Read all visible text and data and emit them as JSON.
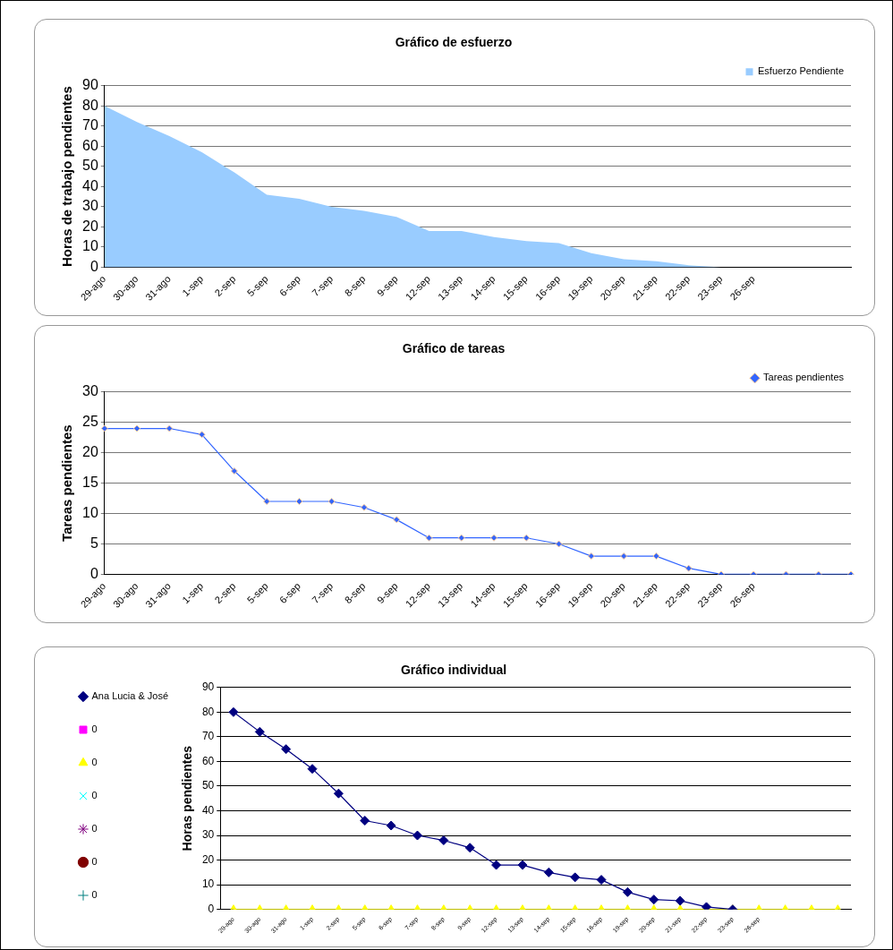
{
  "chart_data": [
    {
      "type": "area",
      "title": "Gráfico de esfuerzo",
      "ylabel": "Horas de trabajo pendientes",
      "categories": [
        "29-ago",
        "30-ago",
        "31-ago",
        "1-sep",
        "2-sep",
        "5-sep",
        "6-sep",
        "7-sep",
        "8-sep",
        "9-sep",
        "12-sep",
        "13-sep",
        "14-sep",
        "15-sep",
        "16-sep",
        "19-sep",
        "20-sep",
        "21-sep",
        "22-sep",
        "23-sep",
        "26-sep",
        null,
        null,
        null
      ],
      "series": [
        {
          "name": "Esfuerzo Pendiente",
          "color": "#99ccff",
          "values": [
            80,
            72,
            65,
            57,
            47,
            36,
            34,
            30,
            28,
            25,
            18,
            18,
            15,
            13,
            12,
            7,
            4,
            3,
            1,
            0,
            0,
            0,
            0,
            0
          ]
        }
      ],
      "ylim": [
        0,
        90
      ],
      "yticks": [
        0,
        10,
        20,
        30,
        40,
        50,
        60,
        70,
        80,
        90
      ],
      "grid": "y",
      "legend": "top right",
      "marker": "none"
    },
    {
      "type": "line",
      "title": "Gráfico de tareas",
      "ylabel": "Tareas pendientes",
      "categories": [
        "29-ago",
        "30-ago",
        "31-ago",
        "1-sep",
        "2-sep",
        "5-sep",
        "6-sep",
        "7-sep",
        "8-sep",
        "9-sep",
        "12-sep",
        "13-sep",
        "14-sep",
        "15-sep",
        "16-sep",
        "19-sep",
        "20-sep",
        "21-sep",
        "22-sep",
        "23-sep",
        "26-sep",
        null,
        null,
        null
      ],
      "series": [
        {
          "name": "Tareas pendientes",
          "color": "#3366ff",
          "values": [
            24,
            24,
            24,
            23,
            17,
            12,
            12,
            12,
            11,
            9,
            6,
            6,
            6,
            6,
            5,
            3,
            3,
            3,
            1,
            0,
            0,
            0,
            0,
            0
          ]
        }
      ],
      "ylim": [
        0,
        30
      ],
      "yticks": [
        0,
        5,
        10,
        15,
        20,
        25,
        30
      ],
      "grid": "y",
      "legend": "top right",
      "marker": "diamond"
    },
    {
      "type": "line",
      "title": "Gráfico individual",
      "ylabel": "Horas pendientes",
      "categories": [
        "29-ago",
        "30-ago",
        "31-ago",
        "1-sep",
        "2-sep",
        "5-sep",
        "6-sep",
        "7-sep",
        "8-sep",
        "9-sep",
        "12-sep",
        "13-sep",
        "14-sep",
        "15-sep",
        "16-sep",
        "19-sep",
        "20-sep",
        "21-sep",
        "22-sep",
        "23-sep",
        "26-sep",
        null,
        null,
        null
      ],
      "series": [
        {
          "name": "Ana Lucia & José",
          "color": "#000080",
          "marker": "diamond",
          "values": [
            80,
            72,
            65,
            57,
            47,
            36,
            34,
            30,
            28,
            25,
            18,
            18,
            15,
            13,
            12,
            7,
            4,
            3.5,
            1,
            0,
            null,
            null,
            null,
            null
          ]
        },
        {
          "name": "0",
          "color": "#ff00ff",
          "marker": "square",
          "values": [
            null,
            null,
            null,
            null,
            null,
            null,
            null,
            null,
            null,
            null,
            null,
            null,
            null,
            null,
            null,
            null,
            null,
            null,
            null,
            null,
            null,
            null,
            null,
            null
          ]
        },
        {
          "name": "0",
          "color": "#ffff00",
          "marker": "triangle",
          "values": [
            0,
            0,
            0,
            0,
            0,
            0,
            0,
            0,
            0,
            0,
            0,
            0,
            0,
            0,
            0,
            0,
            0,
            0,
            0,
            0,
            0,
            0,
            0,
            0
          ]
        },
        {
          "name": "0",
          "color": "#00ffff",
          "marker": "cross",
          "values": [
            null,
            null,
            null,
            null,
            null,
            null,
            null,
            null,
            null,
            null,
            null,
            null,
            null,
            null,
            null,
            null,
            null,
            null,
            null,
            null,
            null,
            null,
            null,
            null
          ]
        },
        {
          "name": "0",
          "color": "#800080",
          "marker": "star",
          "values": [
            null,
            null,
            null,
            null,
            null,
            null,
            null,
            null,
            null,
            null,
            null,
            null,
            null,
            null,
            null,
            null,
            null,
            null,
            null,
            null,
            null,
            null,
            null,
            null
          ]
        },
        {
          "name": "0",
          "color": "#800000",
          "marker": "circle",
          "values": [
            null,
            null,
            null,
            null,
            null,
            null,
            null,
            null,
            null,
            null,
            null,
            null,
            null,
            null,
            null,
            null,
            null,
            null,
            null,
            null,
            null,
            null,
            null,
            null
          ]
        },
        {
          "name": "0",
          "color": "#008080",
          "marker": "plus",
          "values": [
            null,
            null,
            null,
            null,
            null,
            null,
            null,
            null,
            null,
            null,
            null,
            null,
            null,
            null,
            null,
            null,
            null,
            null,
            null,
            null,
            null,
            null,
            null,
            null
          ]
        }
      ],
      "ylim": [
        0,
        90
      ],
      "yticks": [
        0,
        10,
        20,
        30,
        40,
        50,
        60,
        70,
        80,
        90
      ],
      "grid": "y",
      "legend": "left"
    }
  ]
}
